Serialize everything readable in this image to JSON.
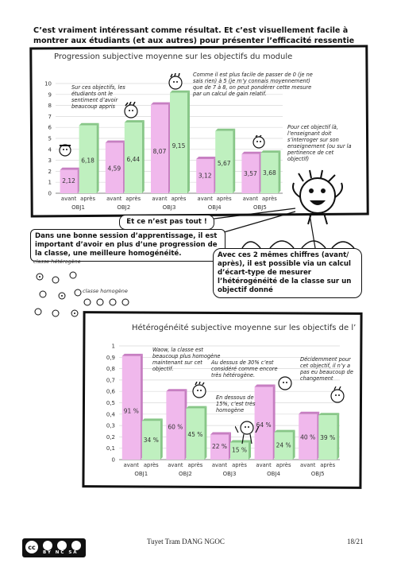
{
  "intro": "C’est vraiment intéressant comme résultat. Et c’est visuellement facile à montrer aux étudiants (et aux autres) pour présenter l’efficacité ressentie du cours.",
  "chart_data": [
    {
      "type": "bar",
      "title": "Progression subjective moyenne sur les objectifs du module",
      "categories": [
        "OBJ1",
        "OBJ2",
        "OBJ3",
        "OBJ4",
        "OBJ5"
      ],
      "sublabels": [
        "avant",
        "après"
      ],
      "series": [
        {
          "name": "avant",
          "values": [
            2.12,
            4.59,
            8.07,
            3.12,
            3.57
          ],
          "labels": [
            "2,12",
            "4,59",
            "8,07",
            "3,12",
            "3,57"
          ]
        },
        {
          "name": "après",
          "values": [
            6.18,
            6.44,
            9.15,
            5.67,
            3.68
          ],
          "labels": [
            "6,18",
            "6,44",
            "9,15",
            "5,67",
            "3,68"
          ]
        }
      ],
      "ylim": [
        0,
        10
      ],
      "yticks": [
        "0",
        "1",
        "2",
        "3",
        "4",
        "5",
        "6",
        "7",
        "8",
        "9",
        "10"
      ],
      "colors": {
        "avant": "#f0b8ec",
        "apres": "#bff0bf"
      }
    },
    {
      "type": "bar",
      "title": "Hétérogénéité subjective moyenne sur les objectifs de l’atelier",
      "categories": [
        "OBJ1",
        "OBJ2",
        "OBJ3",
        "OBJ4",
        "OBJ5"
      ],
      "sublabels": [
        "avant",
        "après"
      ],
      "series": [
        {
          "name": "avant",
          "values": [
            0.91,
            0.6,
            0.22,
            0.64,
            0.4
          ],
          "labels": [
            "91 %",
            "60 %",
            "22 %",
            "64 %",
            "40 %"
          ]
        },
        {
          "name": "après",
          "values": [
            0.34,
            0.45,
            0.15,
            0.24,
            0.39
          ],
          "labels": [
            "34 %",
            "45 %",
            "15 %",
            "24 %",
            "39 %"
          ]
        }
      ],
      "ylim": [
        0,
        1
      ],
      "yticks": [
        "0",
        "0,1",
        "0,2",
        "0,3",
        "0,4",
        "0,5",
        "0,6",
        "0,7",
        "0,8",
        "0,9",
        "1"
      ],
      "colors": {
        "avant": "#f0b8ec",
        "apres": "#bff0bf"
      }
    }
  ],
  "notes1": {
    "n1": "Sur ces objectifs, les étudiants ont le sentiment d’avoir beaucoup appris",
    "n2": "Comme il est plus facile de passer de 0 (je ne sais rien) à 5 (je m’y connais moyennement) que de 7 à 8, on peut pondérer cette mesure par un calcul de gain relatif.",
    "n3": "Pour cet objectif là, l’enseignant doit s’interroger sur son enseignement (ou sur la pertinence de cet objectif)"
  },
  "bubbles": {
    "b1": "Et ce n’est pas tout !",
    "b2": "Dans une bonne session d’apprentissage, il est important d’avoir en plus d’une progression de la classe, une meilleure homogénéité.",
    "b3": "Avec ces 2 mêmes chiffres (avant/ après), il est possible via un calcul d’écart-type de mesurer l’hétérogénéité de la classe sur un objectif donné"
  },
  "labels": {
    "hetero": "classe hétérogène",
    "homo": "classe homogène"
  },
  "notes2": {
    "n1": "Waow, la classe est beaucoup plus homogène maintenant sur cet objectif.",
    "n2": "Au dessus de 30% c’est considéré comme encore très hétérogène.",
    "n3": "En dessous de 15%, c’est très homogène",
    "n4": "Décidemment pour cet objectif, il n’y a pas eu beaucoup de changement"
  },
  "footer": {
    "author": "Tuyet Tram DANG NGOC",
    "page": "18/21",
    "license": "BY NC SA"
  }
}
